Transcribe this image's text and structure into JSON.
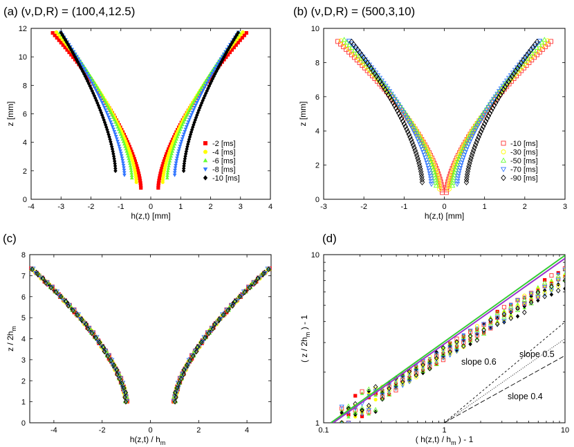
{
  "chart_data": [
    {
      "id": "a",
      "type": "scatter",
      "title": "(a) (ν,D,R) =  (100,4,12.5)",
      "xlabel": "h(z,t) [mm]",
      "ylabel": "z [mm]",
      "xlim": [
        -4,
        4
      ],
      "ylim": [
        0,
        12
      ],
      "xticks": [
        -4,
        -3,
        -2,
        -1,
        0,
        1,
        2,
        3,
        4
      ],
      "yticks": [
        0,
        2,
        4,
        6,
        8,
        10,
        12
      ],
      "legend_position": "lower-right",
      "series": [
        {
          "name": "-2 [ms]",
          "color": "#ff0000",
          "marker": "square-filled",
          "h_min": 0.25,
          "z_min": 0.8,
          "h_top": 3.25
        },
        {
          "name": "-4 [ms]",
          "color": "#ffff00",
          "marker": "circle-filled",
          "h_min": 0.4,
          "z_min": 1.2,
          "h_top": 3.1
        },
        {
          "name": "-6 [ms]",
          "color": "#66ff33",
          "marker": "triangle-up-filled",
          "h_min": 0.55,
          "z_min": 1.5,
          "h_top": 3.0
        },
        {
          "name": "-8 [ms]",
          "color": "#3377ff",
          "marker": "triangle-down-filled",
          "h_min": 0.8,
          "z_min": 1.7,
          "h_top": 2.95
        },
        {
          "name": "-10 [ms]",
          "color": "#000000",
          "marker": "diamond-filled",
          "h_min": 1.1,
          "z_min": 2.0,
          "h_top": 2.95
        }
      ]
    },
    {
      "id": "b",
      "type": "scatter",
      "title": "(b) (ν,D,R) = (500,3,10)",
      "xlabel": "h(z,t) [mm]",
      "ylabel": "z [mm]",
      "xlim": [
        -3,
        3
      ],
      "ylim": [
        0,
        10
      ],
      "xticks": [
        -3,
        -2,
        -1,
        0,
        1,
        2,
        3
      ],
      "yticks": [
        0,
        2,
        4,
        6,
        8,
        10
      ],
      "legend_position": "lower-right",
      "series": [
        {
          "name": "-10 [ms]",
          "color": "#ff3333",
          "marker": "square-open",
          "h_min": 0.05,
          "z_min": 0.4,
          "h_top": 2.7
        },
        {
          "name": "-30 [ms]",
          "color": "#ffff00",
          "marker": "circle-open",
          "h_min": 0.12,
          "z_min": 0.6,
          "h_top": 2.6
        },
        {
          "name": "-50 [ms]",
          "color": "#66ff33",
          "marker": "triangle-up-open",
          "h_min": 0.2,
          "z_min": 0.8,
          "h_top": 2.5
        },
        {
          "name": "-70 [ms]",
          "color": "#3377ff",
          "marker": "triangle-down-open",
          "h_min": 0.32,
          "z_min": 0.9,
          "h_top": 2.4
        },
        {
          "name": "-90 [ms]",
          "color": "#000000",
          "marker": "diamond-open",
          "h_min": 0.55,
          "z_min": 1.0,
          "h_top": 2.35
        }
      ]
    },
    {
      "id": "c",
      "type": "scatter",
      "title": "(c)",
      "xlabel_main": "h(z,t) / h",
      "xlabel_sub": "m",
      "ylabel_main": "z / 2h",
      "ylabel_sub": "m",
      "xlim": [
        -5,
        5
      ],
      "ylim": [
        0,
        8
      ],
      "xticks": [
        -4,
        -2,
        0,
        2,
        4
      ],
      "yticks": [
        0,
        1,
        2,
        3,
        4,
        5,
        6,
        7,
        8
      ],
      "collapse": {
        "h_min": 1.0,
        "z_min": 1.0,
        "h_top": 4.9,
        "z_top": 7.3
      }
    },
    {
      "id": "d",
      "type": "scatter",
      "title": "(d)",
      "xscale": "log",
      "yscale": "log",
      "xlabel_main": "( h(z,t) / h",
      "xlabel_sub": "m",
      "xlabel_tail": ") - 1",
      "ylabel_main": "( z / 2h",
      "ylabel_sub": "m",
      "ylabel_tail": ") - 1",
      "xlim": [
        0.1,
        10
      ],
      "ylim": [
        1,
        10
      ],
      "xticks": [
        0.1,
        1,
        10
      ],
      "yticks": [
        1,
        10
      ],
      "fit_lines": [
        {
          "name": "fit-green",
          "color": "#33cc33",
          "x": [
            0.115,
            10
          ],
          "y": [
            1.0,
            9.9
          ]
        },
        {
          "name": "fit-purple",
          "color": "#9933cc",
          "x": [
            0.12,
            10
          ],
          "y": [
            1.0,
            9.5
          ]
        }
      ],
      "slope_lines": [
        {
          "label": "slope 0.6",
          "slope": 0.6,
          "dash": "3,3",
          "x": [
            1,
            10
          ],
          "y": [
            1,
            3.98
          ]
        },
        {
          "label": "slope 0.5",
          "slope": 0.5,
          "dash": "1,2",
          "x": [
            1,
            10
          ],
          "y": [
            1,
            3.16
          ]
        },
        {
          "label": "slope 0.4",
          "slope": 0.4,
          "dash": "7,3",
          "x": [
            1,
            10
          ],
          "y": [
            1,
            2.51
          ]
        }
      ]
    }
  ]
}
